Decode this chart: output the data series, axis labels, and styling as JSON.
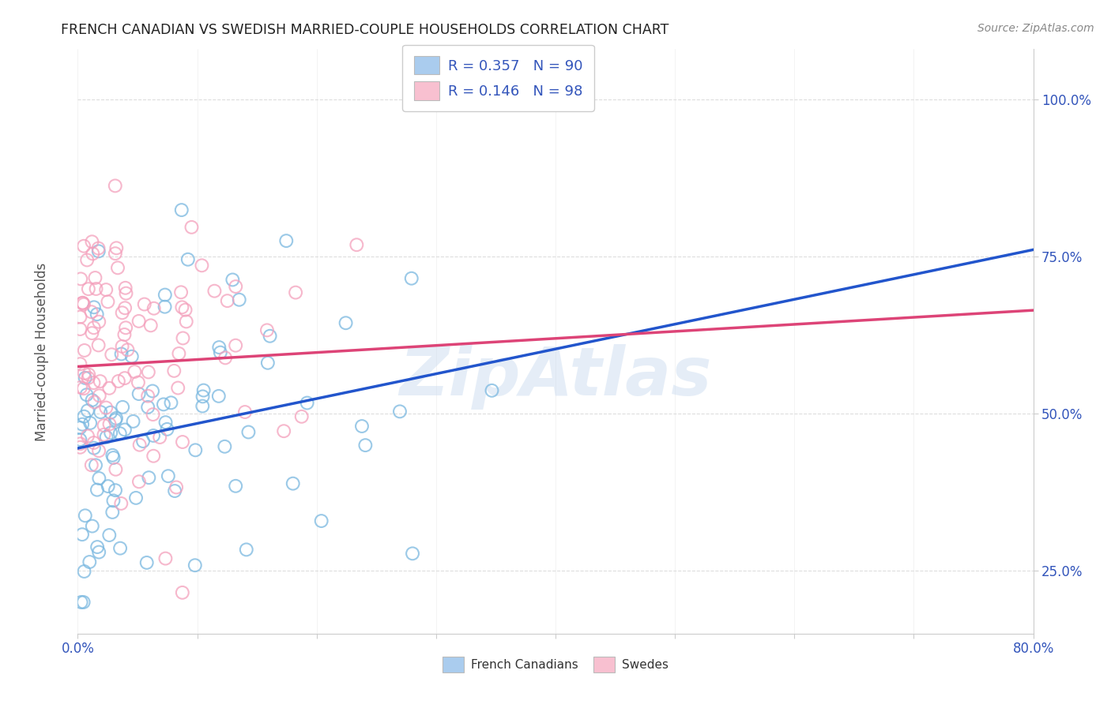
{
  "title": "FRENCH CANADIAN VS SWEDISH MARRIED-COUPLE HOUSEHOLDS CORRELATION CHART",
  "source": "Source: ZipAtlas.com",
  "ylabel": "Married-couple Households",
  "legend_corr": [
    "R = 0.357   N = 90",
    "R = 0.146   N = 98"
  ],
  "legend_bottom": [
    "French Canadians",
    "Swedes"
  ],
  "blue_dot_color": "#7ab8e0",
  "pink_dot_color": "#f4a0bc",
  "blue_line_color": "#2255cc",
  "pink_line_color": "#dd4477",
  "blue_legend_color": "#aaccee",
  "pink_legend_color": "#f8c0d0",
  "R_blue": 0.357,
  "N_blue": 90,
  "R_pink": 0.146,
  "N_pink": 98,
  "xmin": 0.0,
  "xmax": 80.0,
  "ymin": 15.0,
  "ymax": 108.0,
  "yticks": [
    25.0,
    50.0,
    75.0,
    100.0
  ],
  "xtick_positions": [
    0,
    10,
    20,
    30,
    40,
    50,
    60,
    70,
    80
  ],
  "watermark": "ZipAtlas",
  "background_color": "#ffffff",
  "grid_color": "#dddddd",
  "blue_intercept": 44.5,
  "blue_slope": 0.395,
  "pink_intercept": 57.5,
  "pink_slope": 0.112
}
